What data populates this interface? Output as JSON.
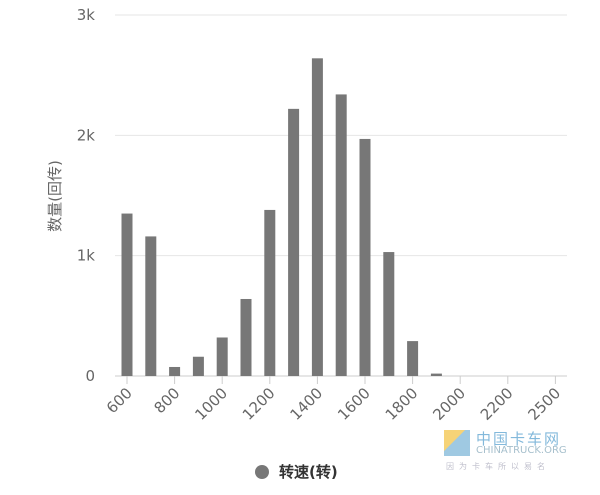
{
  "chart_data": {
    "type": "bar",
    "title": "",
    "xlabel": "",
    "ylabel": "数量(回传)",
    "categories": [
      "600",
      "700",
      "800",
      "900",
      "1000",
      "1100",
      "1200",
      "1300",
      "1400",
      "1500",
      "1600",
      "1700",
      "1800",
      "1900",
      "2000",
      "2100",
      "2200",
      "2300",
      "2500"
    ],
    "tick_labels": [
      "600",
      "800",
      "1000",
      "1200",
      "1400",
      "1600",
      "1800",
      "2000",
      "2200",
      "2500"
    ],
    "y_ticks": [
      "0",
      "1k",
      "2k",
      "3k"
    ],
    "ylim": [
      0,
      3000
    ],
    "grid": true,
    "legend_position": "bottom",
    "series": [
      {
        "name": "转速(转)",
        "color": "#777777",
        "values": [
          1350,
          1160,
          75,
          160,
          320,
          640,
          1380,
          2220,
          2640,
          2340,
          1970,
          1030,
          290,
          20,
          0,
          0,
          0,
          0,
          0
        ]
      }
    ]
  },
  "watermark": {
    "line1": "中国卡车网",
    "line2": "CHINATRUCK.ORG",
    "line3": "因为卡车所以易名"
  }
}
